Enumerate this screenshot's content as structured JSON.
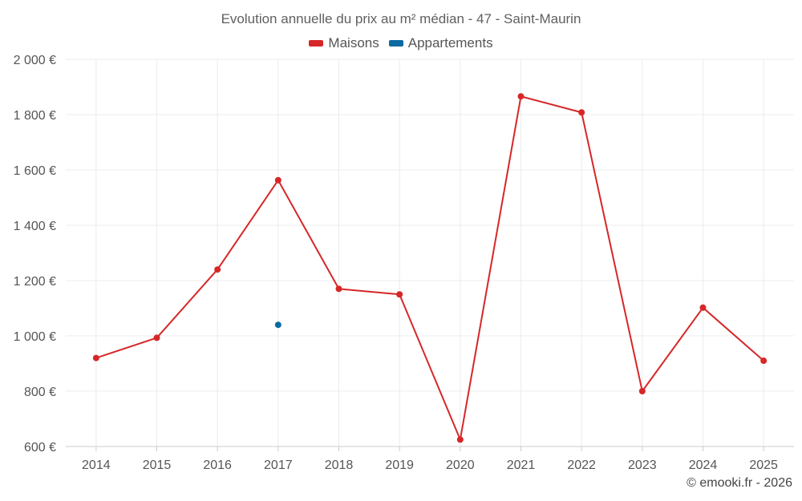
{
  "chart_data": {
    "type": "line",
    "title": "Evolution annuelle du prix au m² médian - 47 - Saint-Maurin",
    "categories": [
      "2014",
      "2015",
      "2016",
      "2017",
      "2018",
      "2019",
      "2020",
      "2021",
      "2022",
      "2023",
      "2024",
      "2025"
    ],
    "series": [
      {
        "name": "Maisons",
        "color": "#d62728",
        "values": [
          920,
          993,
          1240,
          1563,
          1170,
          1150,
          625,
          1866,
          1808,
          800,
          1102,
          910
        ]
      },
      {
        "name": "Appartements",
        "color": "#0b6aa2",
        "values": [
          null,
          null,
          null,
          1040,
          null,
          null,
          null,
          null,
          null,
          null,
          null,
          null
        ]
      }
    ],
    "y_ticks": [
      600,
      800,
      1000,
      1200,
      1400,
      1600,
      1800,
      2000
    ],
    "y_tick_labels": [
      "600 €",
      "800 €",
      "1 000 €",
      "1 200 €",
      "1 400 €",
      "1 600 €",
      "1 800 €",
      "2 000 €"
    ],
    "ylim": [
      600,
      2000
    ],
    "xlabel": "",
    "ylabel": "",
    "grid": true,
    "legend": "top-center"
  },
  "credit": "© emooki.fr - 2026"
}
